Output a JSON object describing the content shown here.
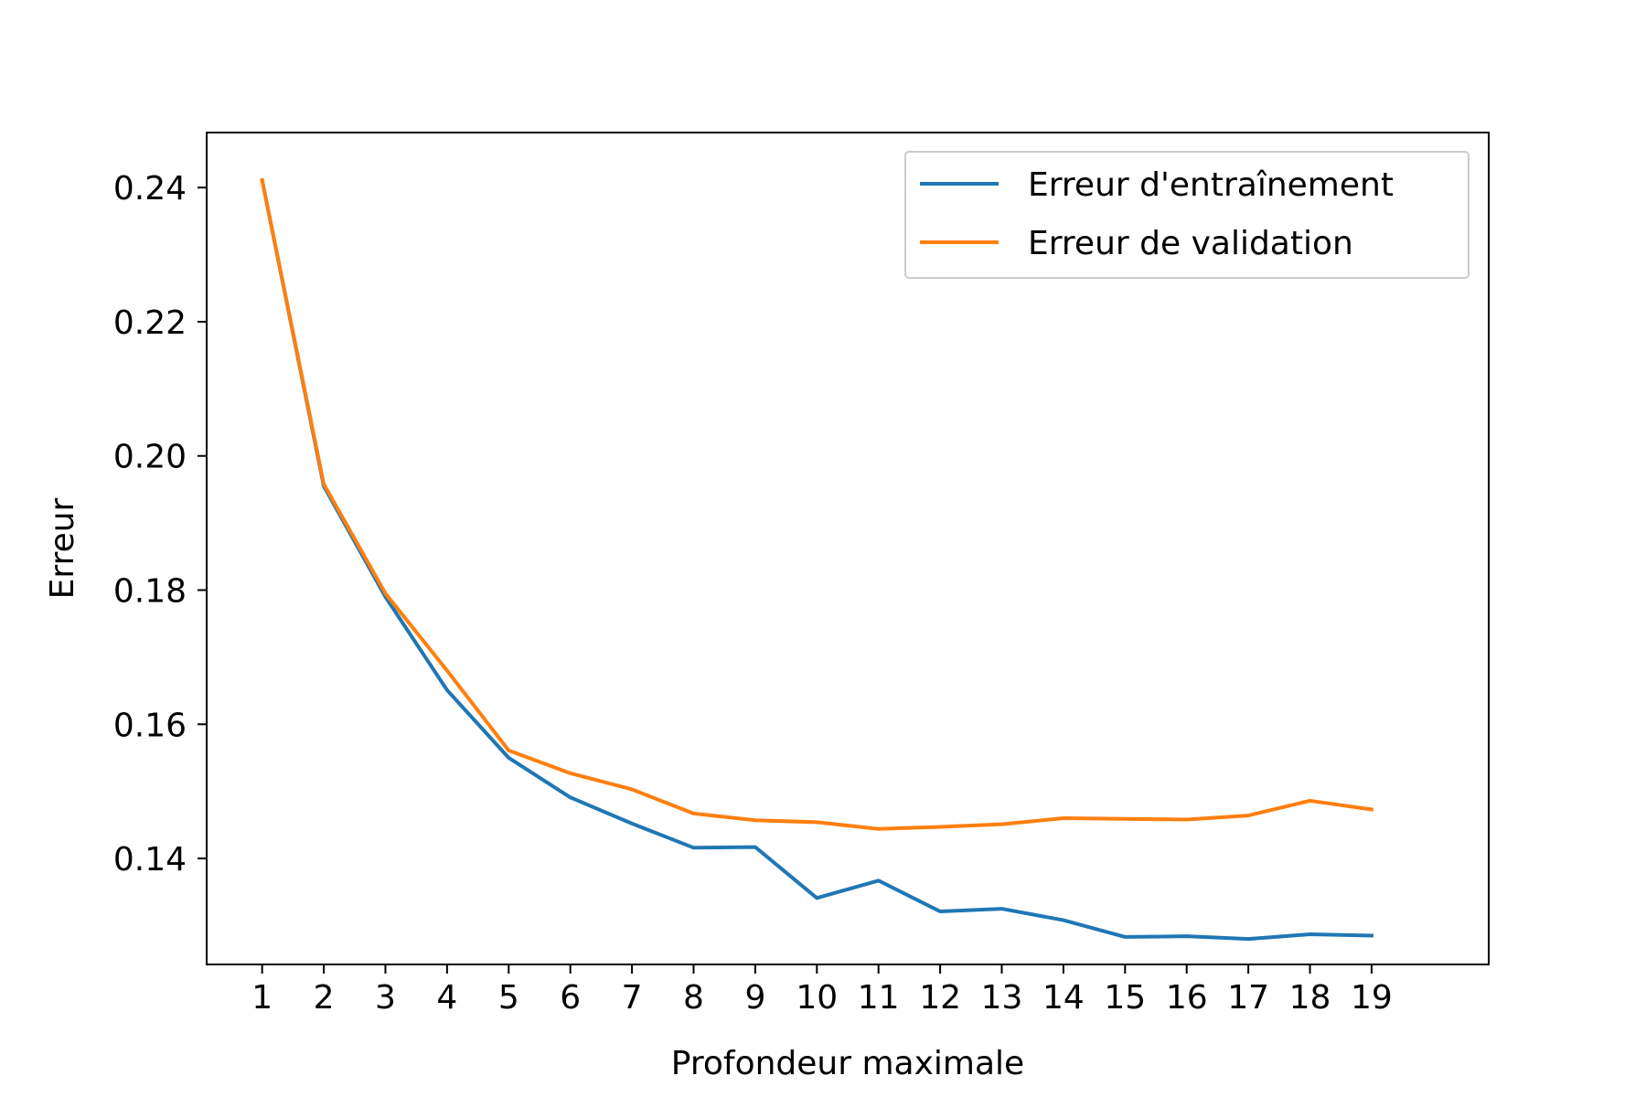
{
  "chart_data": {
    "type": "line",
    "title": "",
    "xlabel": "Profondeur maximale",
    "ylabel": "Erreur",
    "x": [
      1,
      2,
      3,
      4,
      5,
      6,
      7,
      8,
      9,
      10,
      11,
      12,
      13,
      14,
      15,
      16,
      17,
      18,
      19
    ],
    "x_ticks": [
      "1",
      "2",
      "3",
      "4",
      "5",
      "6",
      "7",
      "8",
      "9",
      "10",
      "11",
      "12",
      "13",
      "14",
      "15",
      "16",
      "17",
      "18",
      "19"
    ],
    "y_ticks": [
      "0.14",
      "0.16",
      "0.18",
      "0.20",
      "0.22",
      "0.24"
    ],
    "xlim": [
      0.1,
      20.9
    ],
    "ylim": [
      0.1242,
      0.2482
    ],
    "grid": false,
    "legend_position": "top-right",
    "series": [
      {
        "name": "Erreur d'entraînement",
        "color": "#1f77b4",
        "values": [
          0.2411,
          0.1955,
          0.179,
          0.1651,
          0.155,
          0.1491,
          0.1452,
          0.1416,
          0.1417,
          0.1341,
          0.1367,
          0.1321,
          0.1325,
          0.1308,
          0.1283,
          0.1284,
          0.128,
          0.1287,
          0.1285
        ]
      },
      {
        "name": "Erreur de validation",
        "color": "#ff7f0e",
        "values": [
          0.2411,
          0.1958,
          0.1795,
          0.168,
          0.1561,
          0.1527,
          0.1503,
          0.1467,
          0.1457,
          0.1454,
          0.1444,
          0.1447,
          0.1451,
          0.146,
          0.1459,
          0.1458,
          0.1464,
          0.1486,
          0.1473
        ]
      }
    ]
  }
}
